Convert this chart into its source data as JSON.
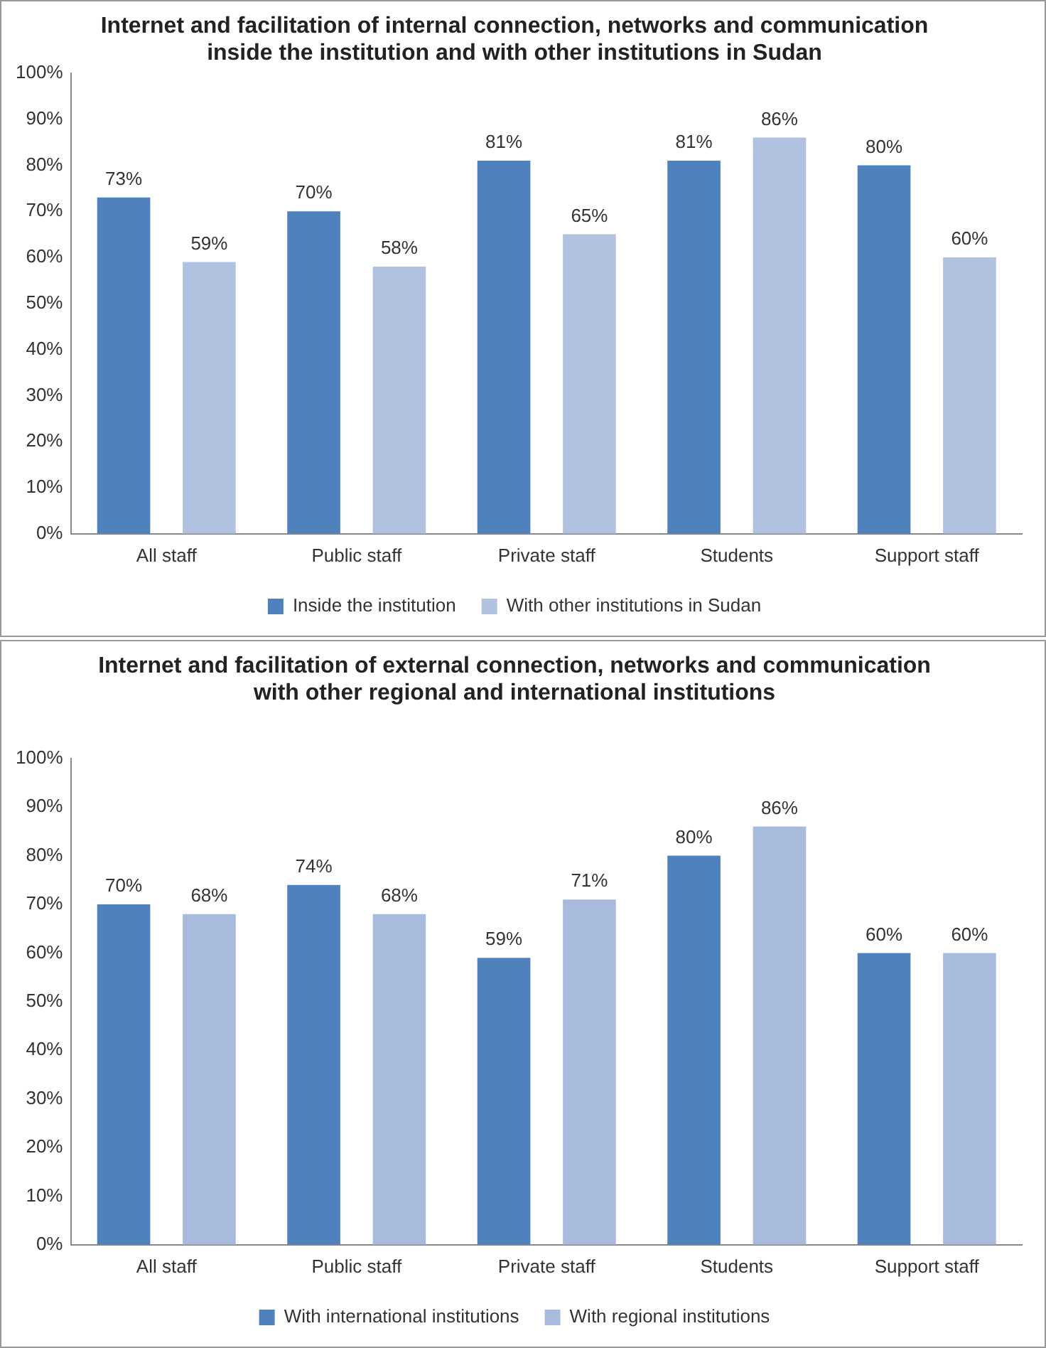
{
  "chart_data": [
    {
      "type": "bar",
      "title": "Internet and facilitation of internal connection, networks and communication inside the institution and with other institutions in Sudan",
      "categories": [
        "All staff",
        "Public staff",
        "Private staff",
        "Students",
        "Support staff"
      ],
      "series": [
        {
          "name": "Inside the institution",
          "color": "#4f81bd",
          "values": [
            73,
            70,
            81,
            81,
            80
          ],
          "value_labels": [
            "73%",
            "70%",
            "81%",
            "81%",
            "80%"
          ]
        },
        {
          "name": "With other institutions in Sudan",
          "color": "#b0c2e0",
          "values": [
            59,
            58,
            65,
            86,
            60
          ],
          "value_labels": [
            "59%",
            "58%",
            "65%",
            "86%",
            "60%"
          ]
        }
      ],
      "ylim": [
        0,
        100
      ],
      "yticks": [
        {
          "value": 0,
          "label": "0%"
        },
        {
          "value": 10,
          "label": "10%"
        },
        {
          "value": 20,
          "label": "20%"
        },
        {
          "value": 30,
          "label": "30%"
        },
        {
          "value": 40,
          "label": "40%"
        },
        {
          "value": 50,
          "label": "50%"
        },
        {
          "value": 60,
          "label": "60%"
        },
        {
          "value": 70,
          "label": "70%"
        },
        {
          "value": 80,
          "label": "80%"
        },
        {
          "value": 90,
          "label": "90%"
        },
        {
          "value": 100,
          "label": "100%"
        }
      ],
      "grid": false,
      "legend": "bottom"
    },
    {
      "type": "bar",
      "title": "Internet and facilitation of external connection, networks and communication with other regional and international institutions",
      "categories": [
        "All staff",
        "Public staff",
        "Private staff",
        "Students",
        "Support staff"
      ],
      "series": [
        {
          "name": "With international institutions",
          "color": "#4f81bd",
          "values": [
            70,
            74,
            59,
            80,
            60
          ],
          "value_labels": [
            "70%",
            "74%",
            "59%",
            "80%",
            "60%"
          ]
        },
        {
          "name": "With regional institutions",
          "color": "#a9bbdc",
          "values": [
            68,
            68,
            71,
            86,
            60
          ],
          "value_labels": [
            "68%",
            "68%",
            "71%",
            "86%",
            "60%"
          ]
        }
      ],
      "ylim": [
        0,
        100
      ],
      "yticks": [
        {
          "value": 0,
          "label": "0%"
        },
        {
          "value": 10,
          "label": "10%"
        },
        {
          "value": 20,
          "label": "20%"
        },
        {
          "value": 30,
          "label": "30%"
        },
        {
          "value": 40,
          "label": "40%"
        },
        {
          "value": 50,
          "label": "50%"
        },
        {
          "value": 60,
          "label": "60%"
        },
        {
          "value": 70,
          "label": "70%"
        },
        {
          "value": 80,
          "label": "80%"
        },
        {
          "value": 90,
          "label": "90%"
        },
        {
          "value": 100,
          "label": "100%"
        }
      ],
      "grid": false,
      "legend": "bottom"
    }
  ]
}
